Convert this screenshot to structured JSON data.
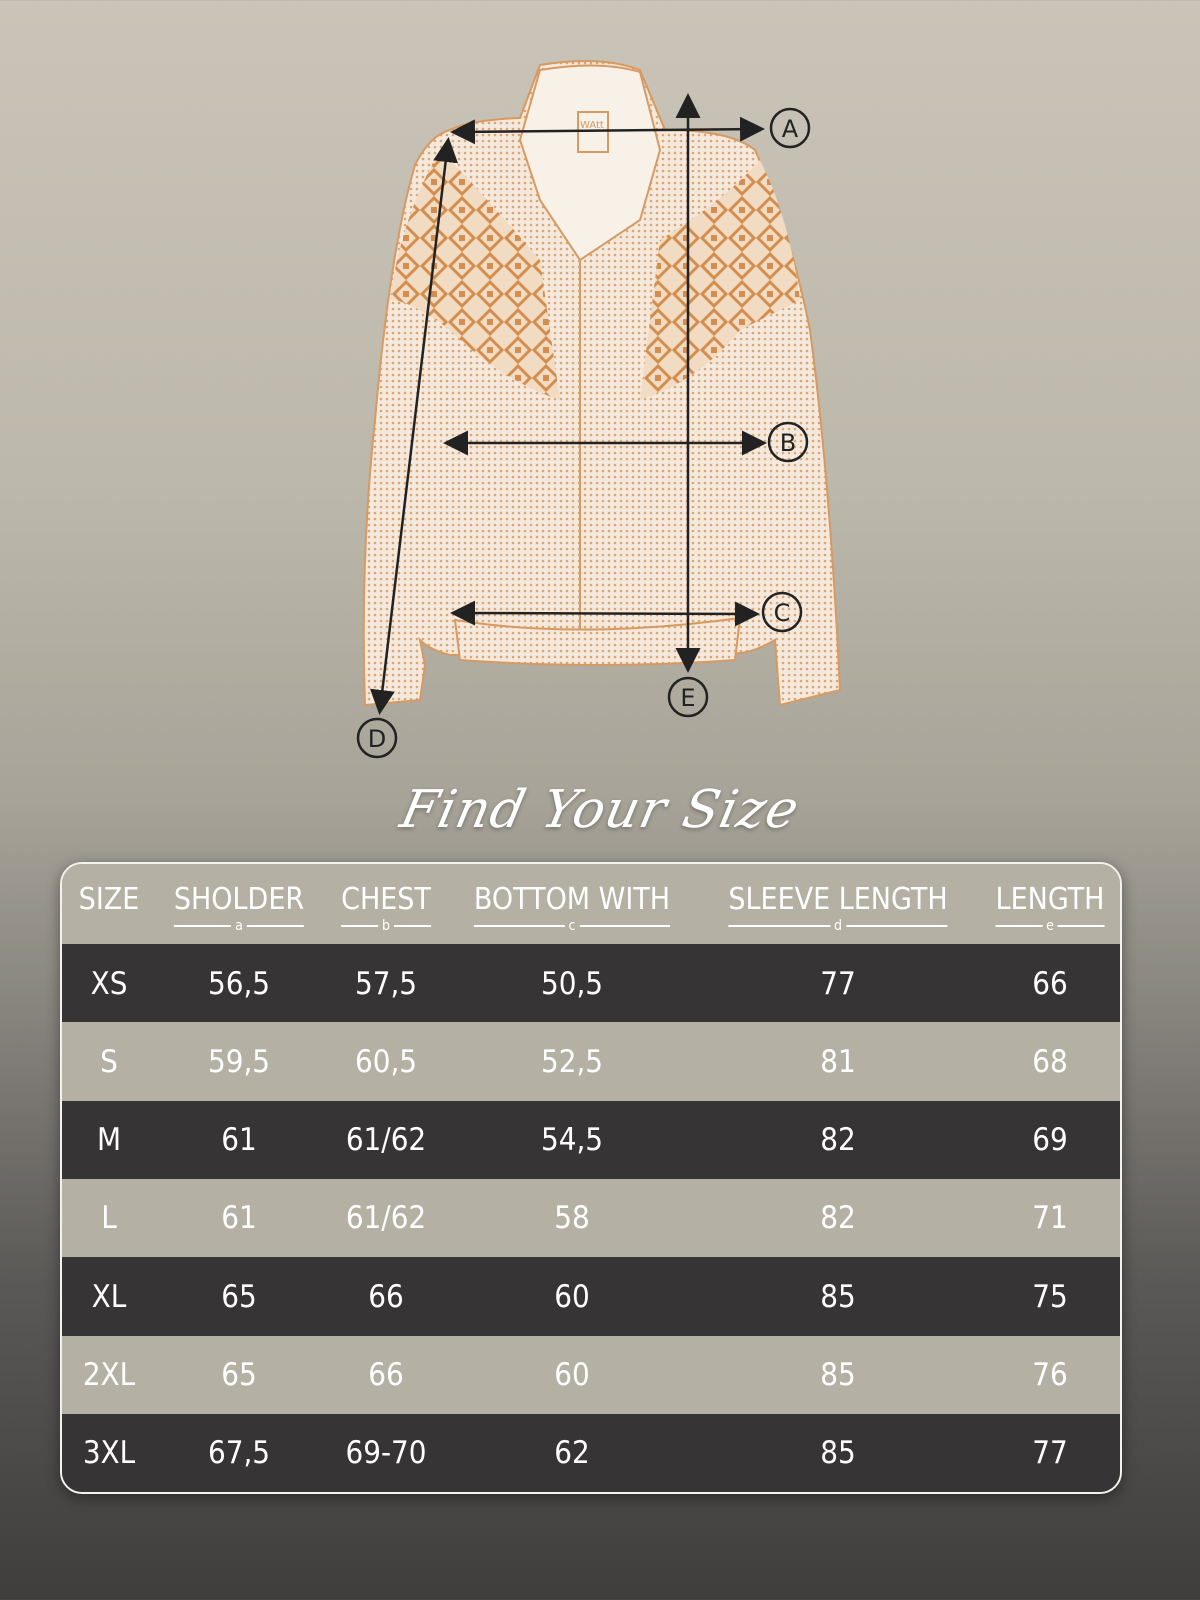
{
  "title": "Find Your Size",
  "illustration": {
    "brand_label": "WAtt",
    "markers": [
      "A",
      "B",
      "C",
      "D",
      "E"
    ],
    "colors": {
      "jacket_fill": "#f3e6d6",
      "jacket_pattern": "#d8995e",
      "arrow": "#222222"
    }
  },
  "table": {
    "headers": [
      {
        "label": "SIZE",
        "sub": ""
      },
      {
        "label": "SHOLDER",
        "sub": "a"
      },
      {
        "label": "CHEST",
        "sub": "b"
      },
      {
        "label": "BOTTOM WITH",
        "sub": "c"
      },
      {
        "label": "SLEEVE LENGTH",
        "sub": "d"
      },
      {
        "label": "LENGTH",
        "sub": "e"
      }
    ],
    "rows": [
      [
        "XS",
        "56,5",
        "57,5",
        "50,5",
        "77",
        "66"
      ],
      [
        "S",
        "59,5",
        "60,5",
        "52,5",
        "81",
        "68"
      ],
      [
        "M",
        "61",
        "61/62",
        "54,5",
        "82",
        "69"
      ],
      [
        "L",
        "61",
        "61/62",
        "58",
        "82",
        "71"
      ],
      [
        "XL",
        "65",
        "66",
        "60",
        "85",
        "75"
      ],
      [
        "2XL",
        "65",
        "66",
        "60",
        "85",
        "76"
      ],
      [
        "3XL",
        "67,5",
        "69-70",
        "62",
        "85",
        "77"
      ]
    ],
    "colors": {
      "dark_row": "#363435",
      "light_row": "#b4b0a3"
    }
  }
}
